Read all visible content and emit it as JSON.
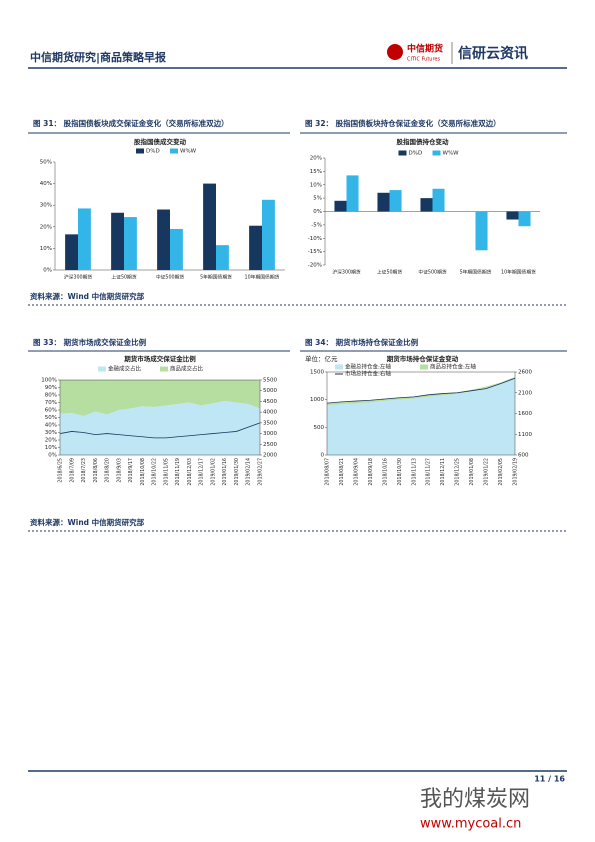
{
  "header": {
    "title": "中信期货研究|商品策略早报",
    "logo": "中信期货",
    "logo_en": "CITIC Futures",
    "brand": "信研云资讯"
  },
  "figures": [
    {
      "caption": "图 31：   股指国债板块成交保证金变化（交易所标准双边）",
      "chart": {
        "type": "bar",
        "title": "股指国债成交变动",
        "categories": [
          "沪深300期货",
          "上证50期货",
          "中证500期货",
          "5年期国债期货",
          "10年期国债期货"
        ],
        "series": [
          {
            "name": "D%D",
            "color": "#17375e",
            "values": [
              16.5,
              26.5,
              28,
              40,
              20.5
            ]
          },
          {
            "name": "W%W",
            "color": "#33b5e8",
            "values": [
              28.5,
              24.5,
              19,
              11.5,
              32.5
            ]
          }
        ],
        "ylim": [
          0,
          50
        ],
        "yticks": [
          {
            "value": 0,
            "label": "0%"
          },
          {
            "value": 10,
            "label": "10%"
          },
          {
            "value": 20,
            "label": "20%"
          },
          {
            "value": 30,
            "label": "30%"
          },
          {
            "value": 40,
            "label": "40%"
          },
          {
            "value": 50,
            "label": "50%"
          }
        ]
      }
    },
    {
      "caption": "图 32：   股指国债板块持仓保证金变化（交易所标准双边）",
      "chart": {
        "type": "bar",
        "title": "股指国债持仓变动",
        "categories": [
          "沪深300期货",
          "上证50期货",
          "中证500期货",
          "5年期国债期货",
          "10年期国债期货"
        ],
        "series": [
          {
            "name": "D%D",
            "color": "#17375e",
            "values": [
              4,
              7,
              5,
              0,
              -3
            ]
          },
          {
            "name": "W%W",
            "color": "#33b5e8",
            "values": [
              13.5,
              8,
              8.5,
              -14.5,
              -5.5
            ]
          }
        ],
        "ylim": [
          -20,
          20
        ],
        "yticks": [
          {
            "value": -20,
            "label": "-20%"
          },
          {
            "value": -15,
            "label": "-15%"
          },
          {
            "value": -10,
            "label": "-10%"
          },
          {
            "value": -5,
            "label": "-5%"
          },
          {
            "value": 0,
            "label": "0%"
          },
          {
            "value": 5,
            "label": "5%"
          },
          {
            "value": 10,
            "label": "10%"
          },
          {
            "value": 15,
            "label": "15%"
          },
          {
            "value": 20,
            "label": "20%"
          }
        ]
      }
    },
    {
      "caption": "图 33：   期货市场成交保证金比例",
      "chart": {
        "type": "area",
        "title": "期货市场成交保证金比例",
        "x": [
          "2018/6/25",
          "2018/7/09",
          "2018/7/23",
          "2018/8/06",
          "2018/8/20",
          "2018/9/03",
          "2018/9/17",
          "2018/10/08",
          "2018/10/22",
          "2018/11/05",
          "2018/11/19",
          "2018/12/03",
          "2018/12/17",
          "2019/01/02",
          "2019/01/16",
          "2019/01/30",
          "2019/02/14",
          "2019/02/27"
        ],
        "series": [
          {
            "name": "金融成交占比",
            "color": "#bfe6f5",
            "kind": "area",
            "values": [
              55,
              56,
              52,
              58,
              54,
              60,
              62,
              65,
              64,
              66,
              68,
              70,
              66,
              69,
              72,
              70,
              68,
              62
            ]
          },
          {
            "name": "商品成交占比",
            "color": "#b5dea0",
            "kind": "area",
            "values": [
              45,
              44,
              48,
              42,
              46,
              40,
              38,
              35,
              36,
              34,
              32,
              30,
              34,
              31,
              28,
              30,
              32,
              38
            ]
          },
          {
            "color": "#17375e",
            "kind": "line",
            "axis": "y2",
            "values": [
              3000,
              3100,
              3050,
              2950,
              3000,
              2950,
              2900,
              2850,
              2800,
              2800,
              2850,
              2900,
              2950,
              3000,
              3050,
              3100,
              3300,
              3500
            ]
          }
        ],
        "ylim": [
          0,
          100
        ],
        "yticks": [
          {
            "value": 0,
            "label": "0%"
          },
          {
            "value": 10,
            "label": "10%"
          },
          {
            "value": 20,
            "label": "20%"
          },
          {
            "value": 30,
            "label": "30%"
          },
          {
            "value": 40,
            "label": "40%"
          },
          {
            "value": 50,
            "label": "50%"
          },
          {
            "value": 60,
            "label": "60%"
          },
          {
            "value": 70,
            "label": "70%"
          },
          {
            "value": 80,
            "label": "80%"
          },
          {
            "value": 90,
            "label": "90%"
          },
          {
            "value": 100,
            "label": "100%"
          }
        ],
        "y2lim": [
          2000,
          5500
        ],
        "y2ticks": [
          2000,
          2500,
          3000,
          3500,
          4000,
          4500,
          5000,
          5500
        ]
      }
    },
    {
      "caption": "图 34：   期货市场持仓保证金比例",
      "chart": {
        "type": "area",
        "title": "期货市场持仓保证金变动",
        "unit": "单位：亿元",
        "x": [
          "2018/08/07",
          "2018/08/21",
          "2018/09/04",
          "2018/09/18",
          "2018/10/16",
          "2018/10/30",
          "2018/11/13",
          "2018/11/27",
          "2018/12/11",
          "2018/12/25",
          "2019/01/08",
          "2019/01/22",
          "2019/02/05",
          "2019/02/19"
        ],
        "series": [
          {
            "name": "金融总持仓金:左轴",
            "color": "#bfe6f5",
            "kind": "area",
            "values": [
              900,
              920,
              930,
              950,
              980,
              1000,
              1020,
              1050,
              1080,
              1100,
              1150,
              1200,
              1280,
              1380
            ]
          },
          {
            "name": "商品总持仓金:左轴",
            "color": "#b5dea0",
            "kind": "area",
            "values": [
              30,
              30,
              35,
              30,
              30,
              35,
              30,
              30,
              35,
              30,
              30,
              35,
              30,
              30
            ]
          },
          {
            "name": "市场总持仓金:右轴",
            "color": "#17375e",
            "kind": "line",
            "axis": "y2",
            "values": [
              1850,
              1880,
              1900,
              1920,
              1950,
              1980,
              2000,
              2050,
              2080,
              2100,
              2150,
              2200,
              2320,
              2450
            ]
          }
        ],
        "ylim": [
          0,
          1500
        ],
        "yticks": [
          0,
          500,
          1000,
          1500
        ],
        "y2lim": [
          600,
          2600
        ],
        "y2ticks": [
          600,
          1100,
          1600,
          2100,
          2600
        ]
      }
    }
  ],
  "sources": [
    "资料来源：Wind  中信期货研究部",
    "资料来源：Wind  中信期货研究部"
  ],
  "page_number": "11 / 16",
  "watermark": {
    "name": "我的煤炭网",
    "url": "www.mycoal.cn"
  }
}
